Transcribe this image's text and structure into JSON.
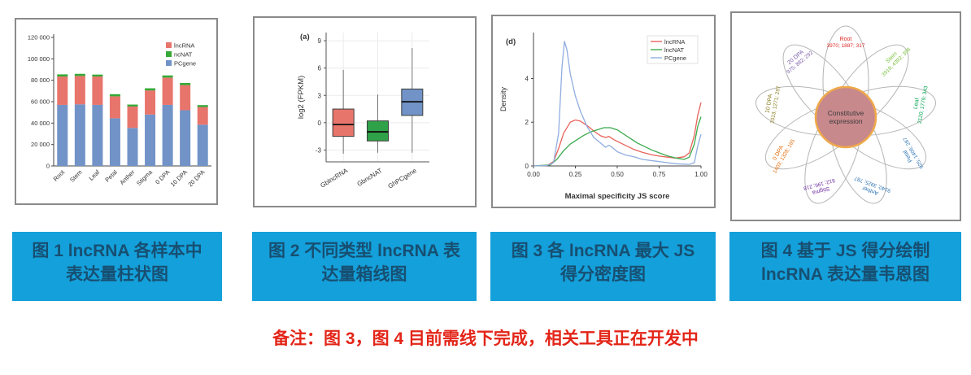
{
  "page": {
    "background": "#ffffff"
  },
  "caption_style": {
    "background": "#14A0DA",
    "text_color": "#174F72"
  },
  "panels": [
    {
      "caption": "图 1 lncRNA 各样本中表达量柱状图"
    },
    {
      "caption": "图 2 不同类型 lncRNA 表达量箱线图"
    },
    {
      "caption": "图 3 各 lncRNA 最大 JS 得分密度图"
    },
    {
      "caption": "图 4 基于 JS 得分绘制 lncRNA 表达量韦恩图"
    }
  ],
  "note": {
    "text": "备注：图 3，图 4 目前需线下完成，相关工具正在开发中",
    "color": "#E32518"
  },
  "chart_data": [
    {
      "type": "bar",
      "stacked": true,
      "categories": [
        "Root",
        "Stem",
        "Leaf",
        "Petal",
        "Anther",
        "Stigma",
        "0 DPA",
        "10 DPA",
        "20 DPA"
      ],
      "series": [
        {
          "name": "lncRNA",
          "color": "#E8756C",
          "values": [
            26500,
            26500,
            26500,
            20500,
            20000,
            22500,
            25500,
            23500,
            16500
          ]
        },
        {
          "name": "ncNAT",
          "color": "#35A836",
          "values": [
            2000,
            2000,
            1800,
            2000,
            1800,
            2000,
            2000,
            2000,
            1800
          ]
        },
        {
          "name": "PCgene",
          "color": "#7193C7",
          "values": [
            57000,
            57500,
            57000,
            44500,
            35500,
            48000,
            57000,
            52000,
            38500
          ]
        }
      ],
      "stack_order": [
        "PCgene",
        "lncRNA",
        "ncNAT"
      ],
      "ylim": [
        0,
        120000
      ],
      "yticks": [
        0,
        20000,
        40000,
        60000,
        80000,
        100000,
        120000
      ],
      "ytick_labels": [
        "0",
        "20 000",
        "40 000",
        "60 000",
        "80 000",
        "100 000",
        "120 000"
      ],
      "legend_position": "top-right",
      "grid": false
    },
    {
      "type": "box",
      "panel_label": "(a)",
      "ylabel": "log2 (FPKM)",
      "categories": [
        "GblncRNA",
        "GbncNAT",
        "GhPCgene"
      ],
      "colors": [
        "#E8756C",
        "#2FA148",
        "#7193C7"
      ],
      "stats": [
        {
          "low": -3.4,
          "q1": -1.5,
          "median": -0.2,
          "q3": 1.5,
          "high": 5.8
        },
        {
          "low": -3.3,
          "q1": -2.0,
          "median": -1.0,
          "q3": 0.2,
          "high": 3.1
        },
        {
          "low": -3.3,
          "q1": 0.8,
          "median": 2.3,
          "q3": 3.7,
          "high": 8.2
        }
      ],
      "ylim": [
        -4.3,
        9.9
      ],
      "yticks": [
        -3,
        0,
        3,
        6,
        9
      ],
      "grid": true
    },
    {
      "type": "line",
      "subtype": "density",
      "panel_label": "(d)",
      "xlabel": "Maximal specificity JS score",
      "ylabel": "Density",
      "xlim": [
        0,
        1
      ],
      "ylim": [
        0,
        6.1
      ],
      "xticks": [
        0,
        0.25,
        0.5,
        0.75,
        1
      ],
      "xtick_labels": [
        "0.00",
        "0.25",
        "0.50",
        "0.75",
        "1.00"
      ],
      "yticks": [
        0,
        2,
        4
      ],
      "legend_position": "top-right",
      "series": [
        {
          "name": "lncRNA",
          "color": "#E8625A",
          "points": [
            [
              0,
              0
            ],
            [
              0.08,
              0.02
            ],
            [
              0.12,
              0.2
            ],
            [
              0.15,
              0.8
            ],
            [
              0.18,
              1.5
            ],
            [
              0.22,
              2.0
            ],
            [
              0.25,
              2.1
            ],
            [
              0.28,
              2.05
            ],
            [
              0.32,
              1.85
            ],
            [
              0.36,
              1.6
            ],
            [
              0.4,
              1.38
            ],
            [
              0.43,
              1.3
            ],
            [
              0.45,
              1.35
            ],
            [
              0.48,
              1.2
            ],
            [
              0.52,
              1.05
            ],
            [
              0.56,
              0.9
            ],
            [
              0.6,
              0.75
            ],
            [
              0.65,
              0.62
            ],
            [
              0.7,
              0.52
            ],
            [
              0.75,
              0.45
            ],
            [
              0.8,
              0.4
            ],
            [
              0.85,
              0.36
            ],
            [
              0.9,
              0.42
            ],
            [
              0.93,
              0.6
            ],
            [
              0.96,
              1.4
            ],
            [
              0.98,
              2.3
            ],
            [
              1,
              2.9
            ]
          ]
        },
        {
          "name": "lncNAT",
          "color": "#3BAA4C",
          "points": [
            [
              0,
              0
            ],
            [
              0.1,
              0.05
            ],
            [
              0.14,
              0.3
            ],
            [
              0.18,
              0.7
            ],
            [
              0.22,
              1.0
            ],
            [
              0.26,
              1.2
            ],
            [
              0.3,
              1.4
            ],
            [
              0.34,
              1.55
            ],
            [
              0.38,
              1.65
            ],
            [
              0.42,
              1.75
            ],
            [
              0.46,
              1.75
            ],
            [
              0.5,
              1.65
            ],
            [
              0.54,
              1.45
            ],
            [
              0.58,
              1.25
            ],
            [
              0.62,
              1.05
            ],
            [
              0.66,
              0.9
            ],
            [
              0.7,
              0.75
            ],
            [
              0.75,
              0.6
            ],
            [
              0.8,
              0.46
            ],
            [
              0.85,
              0.36
            ],
            [
              0.9,
              0.3
            ],
            [
              0.93,
              0.4
            ],
            [
              0.96,
              1.0
            ],
            [
              0.98,
              1.8
            ],
            [
              1,
              2.25
            ]
          ]
        },
        {
          "name": "PCgene",
          "color": "#8FADE0",
          "points": [
            [
              0,
              0
            ],
            [
              0.08,
              0.02
            ],
            [
              0.12,
              0.15
            ],
            [
              0.15,
              1.5
            ],
            [
              0.17,
              4.5
            ],
            [
              0.185,
              5.7
            ],
            [
              0.2,
              5.3
            ],
            [
              0.22,
              4.2
            ],
            [
              0.25,
              3.2
            ],
            [
              0.28,
              2.5
            ],
            [
              0.32,
              1.8
            ],
            [
              0.36,
              1.3
            ],
            [
              0.4,
              1.05
            ],
            [
              0.43,
              0.85
            ],
            [
              0.45,
              0.95
            ],
            [
              0.47,
              0.85
            ],
            [
              0.5,
              0.65
            ],
            [
              0.55,
              0.5
            ],
            [
              0.6,
              0.42
            ],
            [
              0.65,
              0.3
            ],
            [
              0.7,
              0.25
            ],
            [
              0.75,
              0.2
            ],
            [
              0.8,
              0.15
            ],
            [
              0.85,
              0.1
            ],
            [
              0.9,
              0.08
            ],
            [
              0.93,
              0.07
            ],
            [
              0.96,
              0.15
            ],
            [
              0.98,
              0.9
            ],
            [
              1,
              1.45
            ]
          ]
        }
      ]
    },
    {
      "type": "flower-venn",
      "center": {
        "line1": "Constitutive",
        "line2": "expression",
        "fill": "#C8898D",
        "border": "#EFA94A",
        "text_color": "#3A3A3A"
      },
      "petal_stroke": "#B5B5B5",
      "petals": [
        {
          "name": "Root",
          "values": "3970; 1887; 317",
          "color": "#E02A2A",
          "angle": 0,
          "rot": 0
        },
        {
          "name": "Stem",
          "values": "3918; 4392; 398",
          "color": "#7DC142",
          "angle": 40,
          "rot": -45
        },
        {
          "name": "Leaf",
          "values": "2120; 1779; 343",
          "color": "#00A650",
          "angle": 80,
          "rot": -80
        },
        {
          "name": "Petal",
          "values": "925; 1406; 287",
          "color": "#2E75B5",
          "angle": 120,
          "rot": -120
        },
        {
          "name": "Anther",
          "values": "9140; 3925; 787",
          "color": "#2E75B5",
          "angle": 160,
          "rot": -160
        },
        {
          "name": "Stigma",
          "values": "812; 196; 218",
          "color": "#7030A0",
          "angle": 200,
          "rot": 165
        },
        {
          "name": "0 DPA",
          "values": "1403; 1328; 165",
          "color": "#E36C09",
          "angle": 240,
          "rot": -60
        },
        {
          "name": "10 DPA",
          "values": "1013; 1271; 297",
          "color": "#8A7D1F",
          "angle": 280,
          "rot": -80
        },
        {
          "name": "20 DPA",
          "values": "975; 882; 292",
          "color": "#7B5EA7",
          "angle": 320,
          "rot": -40
        }
      ]
    }
  ]
}
